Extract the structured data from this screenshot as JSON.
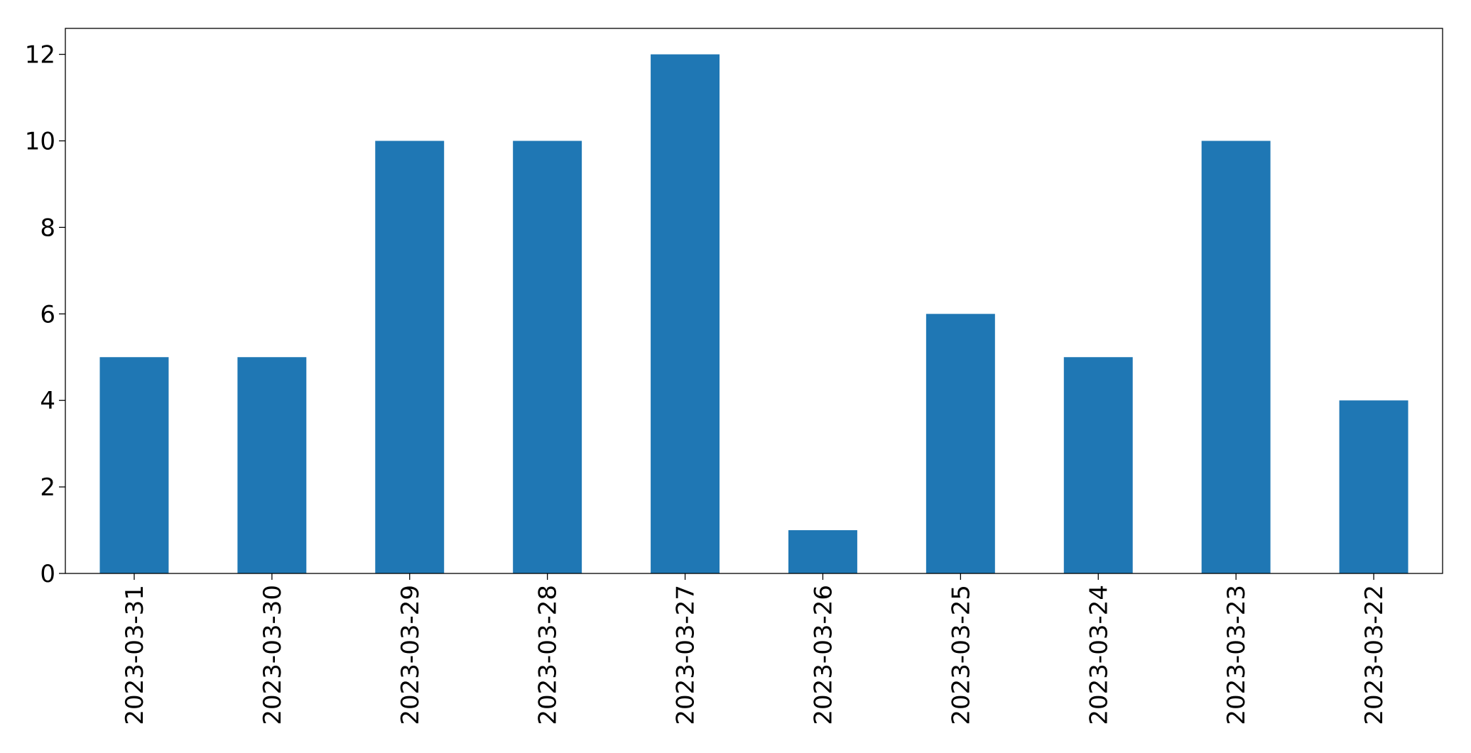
{
  "chart_data": {
    "type": "bar",
    "categories": [
      "2023-03-31",
      "2023-03-30",
      "2023-03-29",
      "2023-03-28",
      "2023-03-27",
      "2023-03-26",
      "2023-03-25",
      "2023-03-24",
      "2023-03-23",
      "2023-03-22"
    ],
    "values": [
      5,
      5,
      10,
      10,
      12,
      1,
      6,
      5,
      10,
      4
    ],
    "color": "#1f77b4",
    "ylim": [
      0,
      12.6
    ],
    "yticks": [
      0,
      2,
      4,
      6,
      8,
      10,
      12
    ],
    "grid": false
  }
}
